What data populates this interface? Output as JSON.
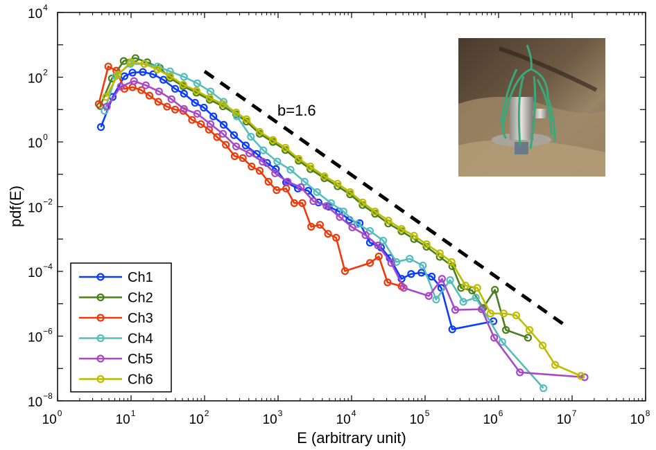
{
  "chart_data": {
    "type": "line",
    "title": "",
    "xlabel": "E (arbitrary unit)",
    "ylabel": "pdf(E)",
    "xscale": "log",
    "yscale": "log",
    "xlim_log10": [
      0,
      8
    ],
    "ylim_log10": [
      -8,
      4
    ],
    "x_ticks": [
      {
        "base": "10",
        "exp": "0"
      },
      {
        "base": "10",
        "exp": "1"
      },
      {
        "base": "10",
        "exp": "2"
      },
      {
        "base": "10",
        "exp": "3"
      },
      {
        "base": "10",
        "exp": "4"
      },
      {
        "base": "10",
        "exp": "5"
      },
      {
        "base": "10",
        "exp": "6"
      },
      {
        "base": "10",
        "exp": "7"
      },
      {
        "base": "10",
        "exp": "8"
      }
    ],
    "y_ticks": [
      {
        "base": "10",
        "exp": "4"
      },
      {
        "base": "10",
        "exp": "2"
      },
      {
        "base": "10",
        "exp": "0"
      },
      {
        "base": "10",
        "exp": "−2"
      },
      {
        "base": "10",
        "exp": "−4"
      },
      {
        "base": "10",
        "exp": "−6"
      },
      {
        "base": "10",
        "exp": "−8"
      }
    ],
    "grid": false,
    "legend_position": "bottom-left",
    "annotation": {
      "text": "b=1.6",
      "fit_line_log10": {
        "x": [
          2.0,
          6.9
        ],
        "y": [
          2.18,
          -5.66
        ]
      },
      "slope": -1.6
    },
    "inset": "photo of sensor with green rope on rock",
    "series": [
      {
        "name": "Ch1",
        "color": "#0a3cff",
        "x_log10": [
          0.59,
          0.75,
          0.91,
          1.02,
          1.16,
          1.3,
          1.44,
          1.6,
          1.72,
          1.87,
          1.99,
          2.12,
          2.26,
          2.4,
          2.56,
          2.71,
          2.85,
          2.97,
          3.11,
          3.27,
          3.41,
          3.55,
          3.69,
          3.83,
          3.97,
          4.11,
          4.25,
          4.4,
          4.52,
          4.68,
          4.81,
          4.95,
          5.09,
          5.22,
          5.37,
          5.93
        ],
        "y_log10": [
          0.46,
          1.39,
          2.03,
          2.14,
          2.16,
          2.09,
          1.92,
          1.64,
          1.49,
          1.21,
          1.06,
          0.79,
          0.53,
          0.21,
          -0.11,
          -0.37,
          -0.65,
          -0.84,
          -1.25,
          -1.44,
          -1.51,
          -1.87,
          -2.0,
          -2.15,
          -2.41,
          -2.51,
          -3.11,
          -3.26,
          -3.59,
          -4.23,
          -4.08,
          -4.04,
          -4.16,
          -4.51,
          -5.79,
          -5.54
        ]
      },
      {
        "name": "Ch2",
        "color": "#4a7f1c",
        "x_log10": [
          0.58,
          0.74,
          0.9,
          1.06,
          1.22,
          1.39,
          1.53,
          1.71,
          1.89,
          2.07,
          2.25,
          2.43,
          2.57,
          2.75,
          2.93,
          3.1,
          3.28,
          3.44,
          3.63,
          3.81,
          3.98,
          4.15,
          4.32,
          4.5,
          4.68,
          4.85,
          5.02,
          5.2,
          5.37,
          5.49,
          5.64,
          5.79,
          5.95,
          6.1,
          6.4
        ],
        "y_log10": [
          1.11,
          1.96,
          2.5,
          2.59,
          2.46,
          2.29,
          1.97,
          1.72,
          1.52,
          1.3,
          1.1,
          0.85,
          0.63,
          0.25,
          0.0,
          -0.25,
          -0.58,
          -0.84,
          -1.12,
          -1.37,
          -1.62,
          -1.95,
          -2.22,
          -2.52,
          -2.76,
          -3.0,
          -3.24,
          -3.55,
          -3.84,
          -4.51,
          -4.59,
          -5.13,
          -4.57,
          -5.81,
          -6.05
        ]
      },
      {
        "name": "Ch3",
        "color": "#ee3a0a",
        "x_log10": [
          0.56,
          0.69,
          0.8,
          0.91,
          1.02,
          1.14,
          1.25,
          1.37,
          1.49,
          1.6,
          1.71,
          1.83,
          1.95,
          2.06,
          2.17,
          2.29,
          2.41,
          2.52,
          2.64,
          2.75,
          2.87,
          2.98,
          3.11,
          3.22,
          3.33,
          3.45,
          3.57,
          3.68,
          3.79,
          3.91,
          4.25,
          4.37,
          4.49,
          4.68
        ],
        "y_log10": [
          1.17,
          2.33,
          2.2,
          1.64,
          1.69,
          1.6,
          1.43,
          1.24,
          1.09,
          1.0,
          0.96,
          0.68,
          0.55,
          0.38,
          0.15,
          -0.09,
          -0.44,
          -0.5,
          -0.76,
          -0.89,
          -1.23,
          -1.49,
          -1.44,
          -1.89,
          -1.89,
          -2.62,
          -2.56,
          -2.84,
          -2.96,
          -3.99,
          -3.74,
          -3.54,
          -4.34,
          -4.46
        ]
      },
      {
        "name": "Ch4",
        "color": "#55bdbd",
        "x_log10": [
          0.64,
          0.79,
          0.99,
          1.18,
          1.36,
          1.53,
          1.72,
          1.9,
          2.08,
          2.26,
          2.44,
          2.63,
          2.8,
          2.99,
          3.17,
          3.36,
          3.53,
          3.72,
          3.89,
          4.08,
          4.25,
          4.43,
          4.61,
          4.79,
          4.97,
          5.15,
          5.34,
          5.52,
          5.69,
          6.05,
          6.61
        ],
        "y_log10": [
          0.96,
          2.03,
          2.41,
          2.41,
          2.33,
          2.18,
          2.01,
          1.81,
          1.56,
          1.24,
          0.79,
          0.16,
          -0.26,
          -0.61,
          -0.86,
          -1.23,
          -1.55,
          -1.89,
          -2.15,
          -2.54,
          -2.75,
          -3.05,
          -3.71,
          -3.61,
          -3.82,
          -4.87,
          -4.27,
          -4.94,
          -4.81,
          -6.18,
          -7.61
        ]
      },
      {
        "name": "Ch5",
        "color": "#a848c8",
        "x_log10": [
          0.67,
          0.86,
          1.04,
          1.2,
          1.38,
          1.55,
          1.72,
          1.9,
          2.08,
          2.25,
          2.43,
          2.61,
          2.79,
          2.96,
          3.13,
          3.31,
          3.48,
          3.66,
          3.84,
          4.01,
          4.19,
          4.36,
          4.54,
          4.71,
          5.05,
          5.23,
          5.41,
          5.77,
          5.94,
          6.29,
          7.17
        ],
        "y_log10": [
          1.09,
          1.71,
          1.88,
          1.75,
          1.56,
          1.32,
          1.02,
          0.87,
          0.55,
          0.25,
          -0.14,
          -0.35,
          -0.61,
          -0.97,
          -1.23,
          -1.4,
          -1.83,
          -1.98,
          -2.32,
          -2.64,
          -2.88,
          -3.2,
          -3.74,
          -4.51,
          -4.76,
          -4.23,
          -5.19,
          -5.17,
          -6.05,
          -7.12,
          -7.27
        ]
      },
      {
        "name": "Ch6",
        "color": "#bcbc00",
        "x_log10": [
          0.66,
          0.82,
          1.0,
          1.18,
          1.36,
          1.53,
          1.71,
          1.89,
          2.07,
          2.25,
          2.43,
          2.57,
          2.75,
          2.93,
          3.1,
          3.28,
          3.44,
          3.63,
          3.81,
          3.98,
          4.15,
          4.32,
          4.5,
          4.68,
          4.85,
          5.02,
          5.2,
          5.36,
          5.55,
          5.71,
          5.89,
          6.07,
          6.24,
          6.42,
          6.6,
          6.77,
          7.12
        ],
        "y_log10": [
          1.39,
          2.07,
          2.46,
          2.41,
          2.24,
          2.03,
          1.77,
          1.58,
          1.36,
          1.17,
          0.91,
          0.7,
          0.31,
          0.06,
          -0.18,
          -0.52,
          -0.76,
          -1.06,
          -1.29,
          -1.55,
          -1.87,
          -2.15,
          -2.43,
          -2.69,
          -2.9,
          -3.16,
          -3.44,
          -3.71,
          -4.44,
          -4.51,
          -5.3,
          -5.3,
          -5.36,
          -5.81,
          -6.29,
          -6.89,
          -7.23
        ]
      }
    ]
  }
}
